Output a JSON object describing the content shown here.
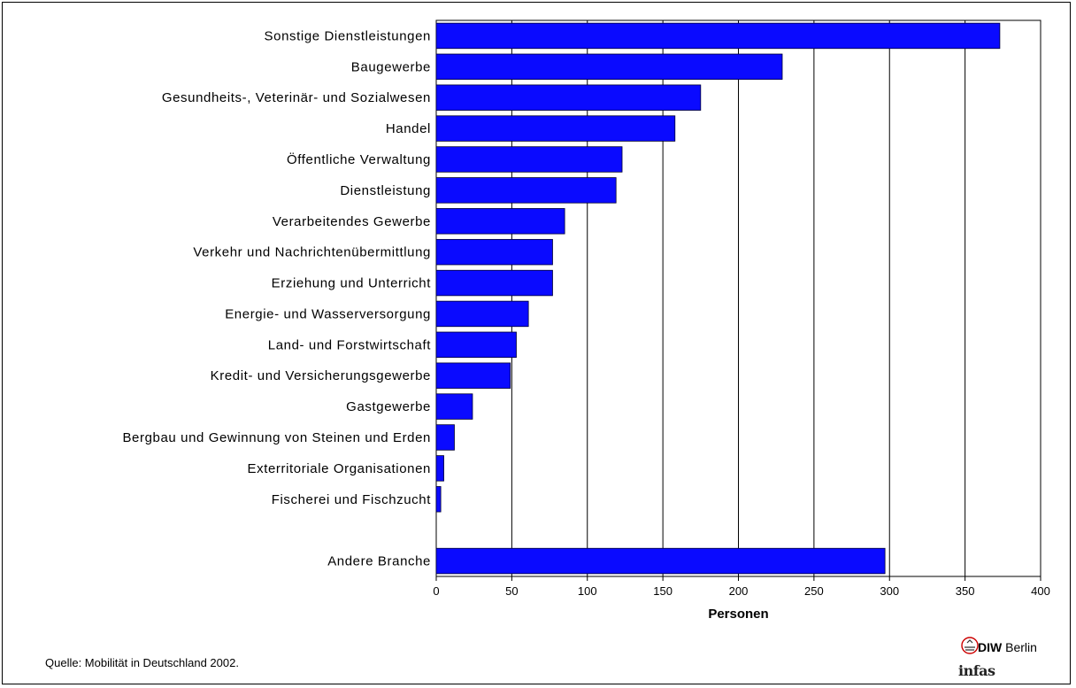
{
  "chart_data": {
    "type": "bar",
    "orientation": "horizontal",
    "categories": [
      "Sonstige Dienstleistungen",
      "Baugewerbe",
      "Gesundheits-, Veterinär- und Sozialwesen",
      "Handel",
      "Öffentliche Verwaltung",
      "Dienstleistung",
      "Verarbeitendes Gewerbe",
      "Verkehr und Nachrichtenübermittlung",
      "Erziehung und Unterricht",
      "Energie- und Wasserversorgung",
      "Land- und Forstwirtschaft",
      "Kredit- und Versicherungsgewerbe",
      "Gastgewerbe",
      "Bergbau und Gewinnung von Steinen und Erden",
      "Exterritoriale Organisationen",
      "Fischerei und Fischzucht",
      "",
      "Andere Branche"
    ],
    "values": [
      373,
      229,
      175,
      158,
      123,
      119,
      85,
      77,
      77,
      61,
      53,
      49,
      24,
      12,
      5,
      3,
      0,
      297
    ],
    "xlabel": "Personen",
    "xlim": [
      0,
      400
    ],
    "xticks": [
      0,
      50,
      100,
      150,
      200,
      250,
      300,
      350,
      400
    ],
    "grid": "vertical",
    "bar_color": "#0a0aff"
  },
  "source": "Quelle: Mobilität in Deutschland 2002.",
  "logos": {
    "diw_bold": "DIW",
    "diw_rest": " Berlin",
    "infas": "infas"
  }
}
